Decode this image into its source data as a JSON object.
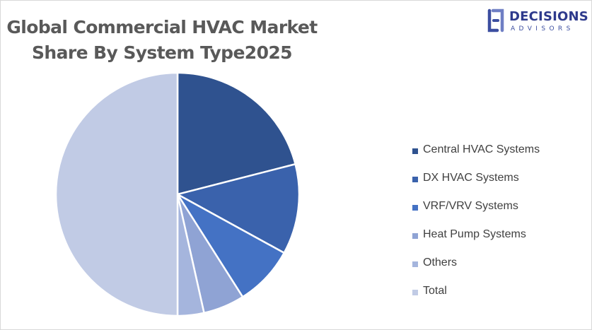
{
  "chart_data": {
    "type": "pie",
    "title_lines": [
      "Global Commercial HVAC Market",
      "Share By System Type2025"
    ],
    "legend_position": "right",
    "slices": [
      {
        "label": "Central HVAC Systems",
        "value": 21,
        "color": "#2f528f"
      },
      {
        "label": "DX HVAC Systems",
        "value": 12,
        "color": "#3a62ac"
      },
      {
        "label": "VRF/VRV Systems",
        "value": 8,
        "color": "#4472c4"
      },
      {
        "label": "Heat Pump Systems",
        "value": 5.5,
        "color": "#8fa3d4"
      },
      {
        "label": "Others",
        "value": 3.5,
        "color": "#a5b5dd"
      },
      {
        "label": "Total",
        "value": 50,
        "color": "#c1cbe5"
      }
    ]
  },
  "brand": {
    "name": "DECISIONS",
    "tagline": "ADVISORS",
    "color": "#3c4ea0"
  }
}
